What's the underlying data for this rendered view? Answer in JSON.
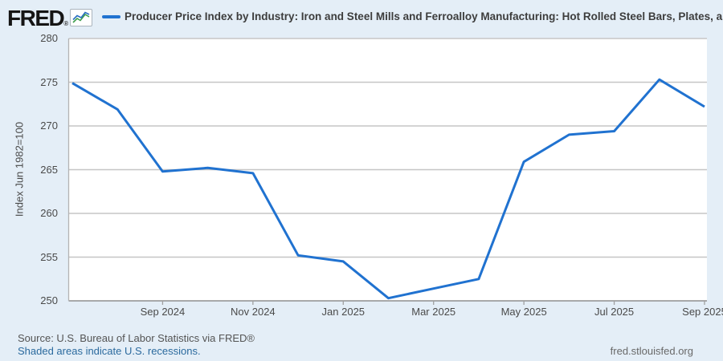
{
  "header": {
    "logo": "FRED",
    "registered": "®",
    "series_title": "Producer Price Index by Industry: Iron and Steel Mills and Ferroalloy Manufacturing: Hot Rolled Steel Bars, Plates, and S"
  },
  "chart_data": {
    "type": "line",
    "title": "Producer Price Index by Industry: Iron and Steel Mills and Ferroalloy Manufacturing: Hot Rolled Steel Bars, Plates, and S",
    "ylabel": "Index Jun 1982=100",
    "x": [
      "Jul 2024",
      "Aug 2024",
      "Sep 2024",
      "Oct 2024",
      "Nov 2024",
      "Dec 2024",
      "Jan 2025",
      "Feb 2025",
      "Mar 2025",
      "Apr 2025",
      "May 2025",
      "Jun 2025",
      "Jul 2025",
      "Aug 2025",
      "Sep 2025"
    ],
    "values": [
      274.9,
      271.9,
      264.8,
      265.2,
      264.6,
      255.2,
      254.5,
      250.3,
      251.4,
      252.5,
      265.9,
      269.0,
      269.4,
      275.3,
      272.2
    ],
    "ylim": [
      250,
      280
    ],
    "yticks": [
      280,
      275,
      270,
      265,
      260,
      255,
      250
    ],
    "xtick_labels": [
      "Sep 2024",
      "Nov 2024",
      "Jan 2025",
      "Mar 2025",
      "May 2025",
      "Jul 2025",
      "Sep 2025"
    ],
    "xtick_indices": [
      2,
      4,
      6,
      8,
      10,
      12,
      14
    ],
    "grid": "horizontal",
    "legend_position": "top",
    "line_color": "#2072d0"
  },
  "footer": {
    "source": "Source: U.S. Bureau of Labor Statistics via FRED®",
    "recession_note": "Shaded areas indicate U.S. recessions.",
    "site": "fred.stlouisfed.org"
  },
  "colors": {
    "background": "#e4eef7",
    "plot_background": "#ffffff",
    "gridline": "#c6c6c6",
    "axis": "#8f8f8f",
    "plot_border": "#b3b3b3",
    "tick": "#a0a0a0",
    "link": "#2b6a9e"
  }
}
